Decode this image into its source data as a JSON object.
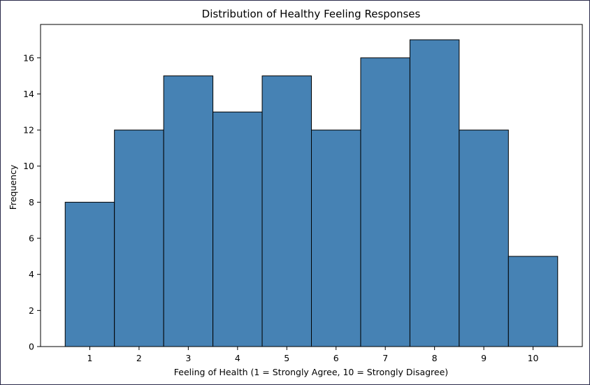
{
  "chart_data": {
    "type": "bar",
    "title": "Distribution of Healthy Feeling Responses",
    "xlabel": "Feeling of Health (1 = Strongly Agree, 10 = Strongly Disagree)",
    "ylabel": "Frequency",
    "categories": [
      "1",
      "2",
      "3",
      "4",
      "5",
      "6",
      "7",
      "8",
      "9",
      "10"
    ],
    "values": [
      8,
      12,
      15,
      13,
      15,
      12,
      16,
      17,
      12,
      5
    ],
    "yticks": [
      0,
      2,
      4,
      6,
      8,
      10,
      12,
      14,
      16
    ],
    "ylim": [
      0,
      17.85
    ],
    "grid": false,
    "bar_color": "#4682b4",
    "edge_color": "#000000"
  }
}
